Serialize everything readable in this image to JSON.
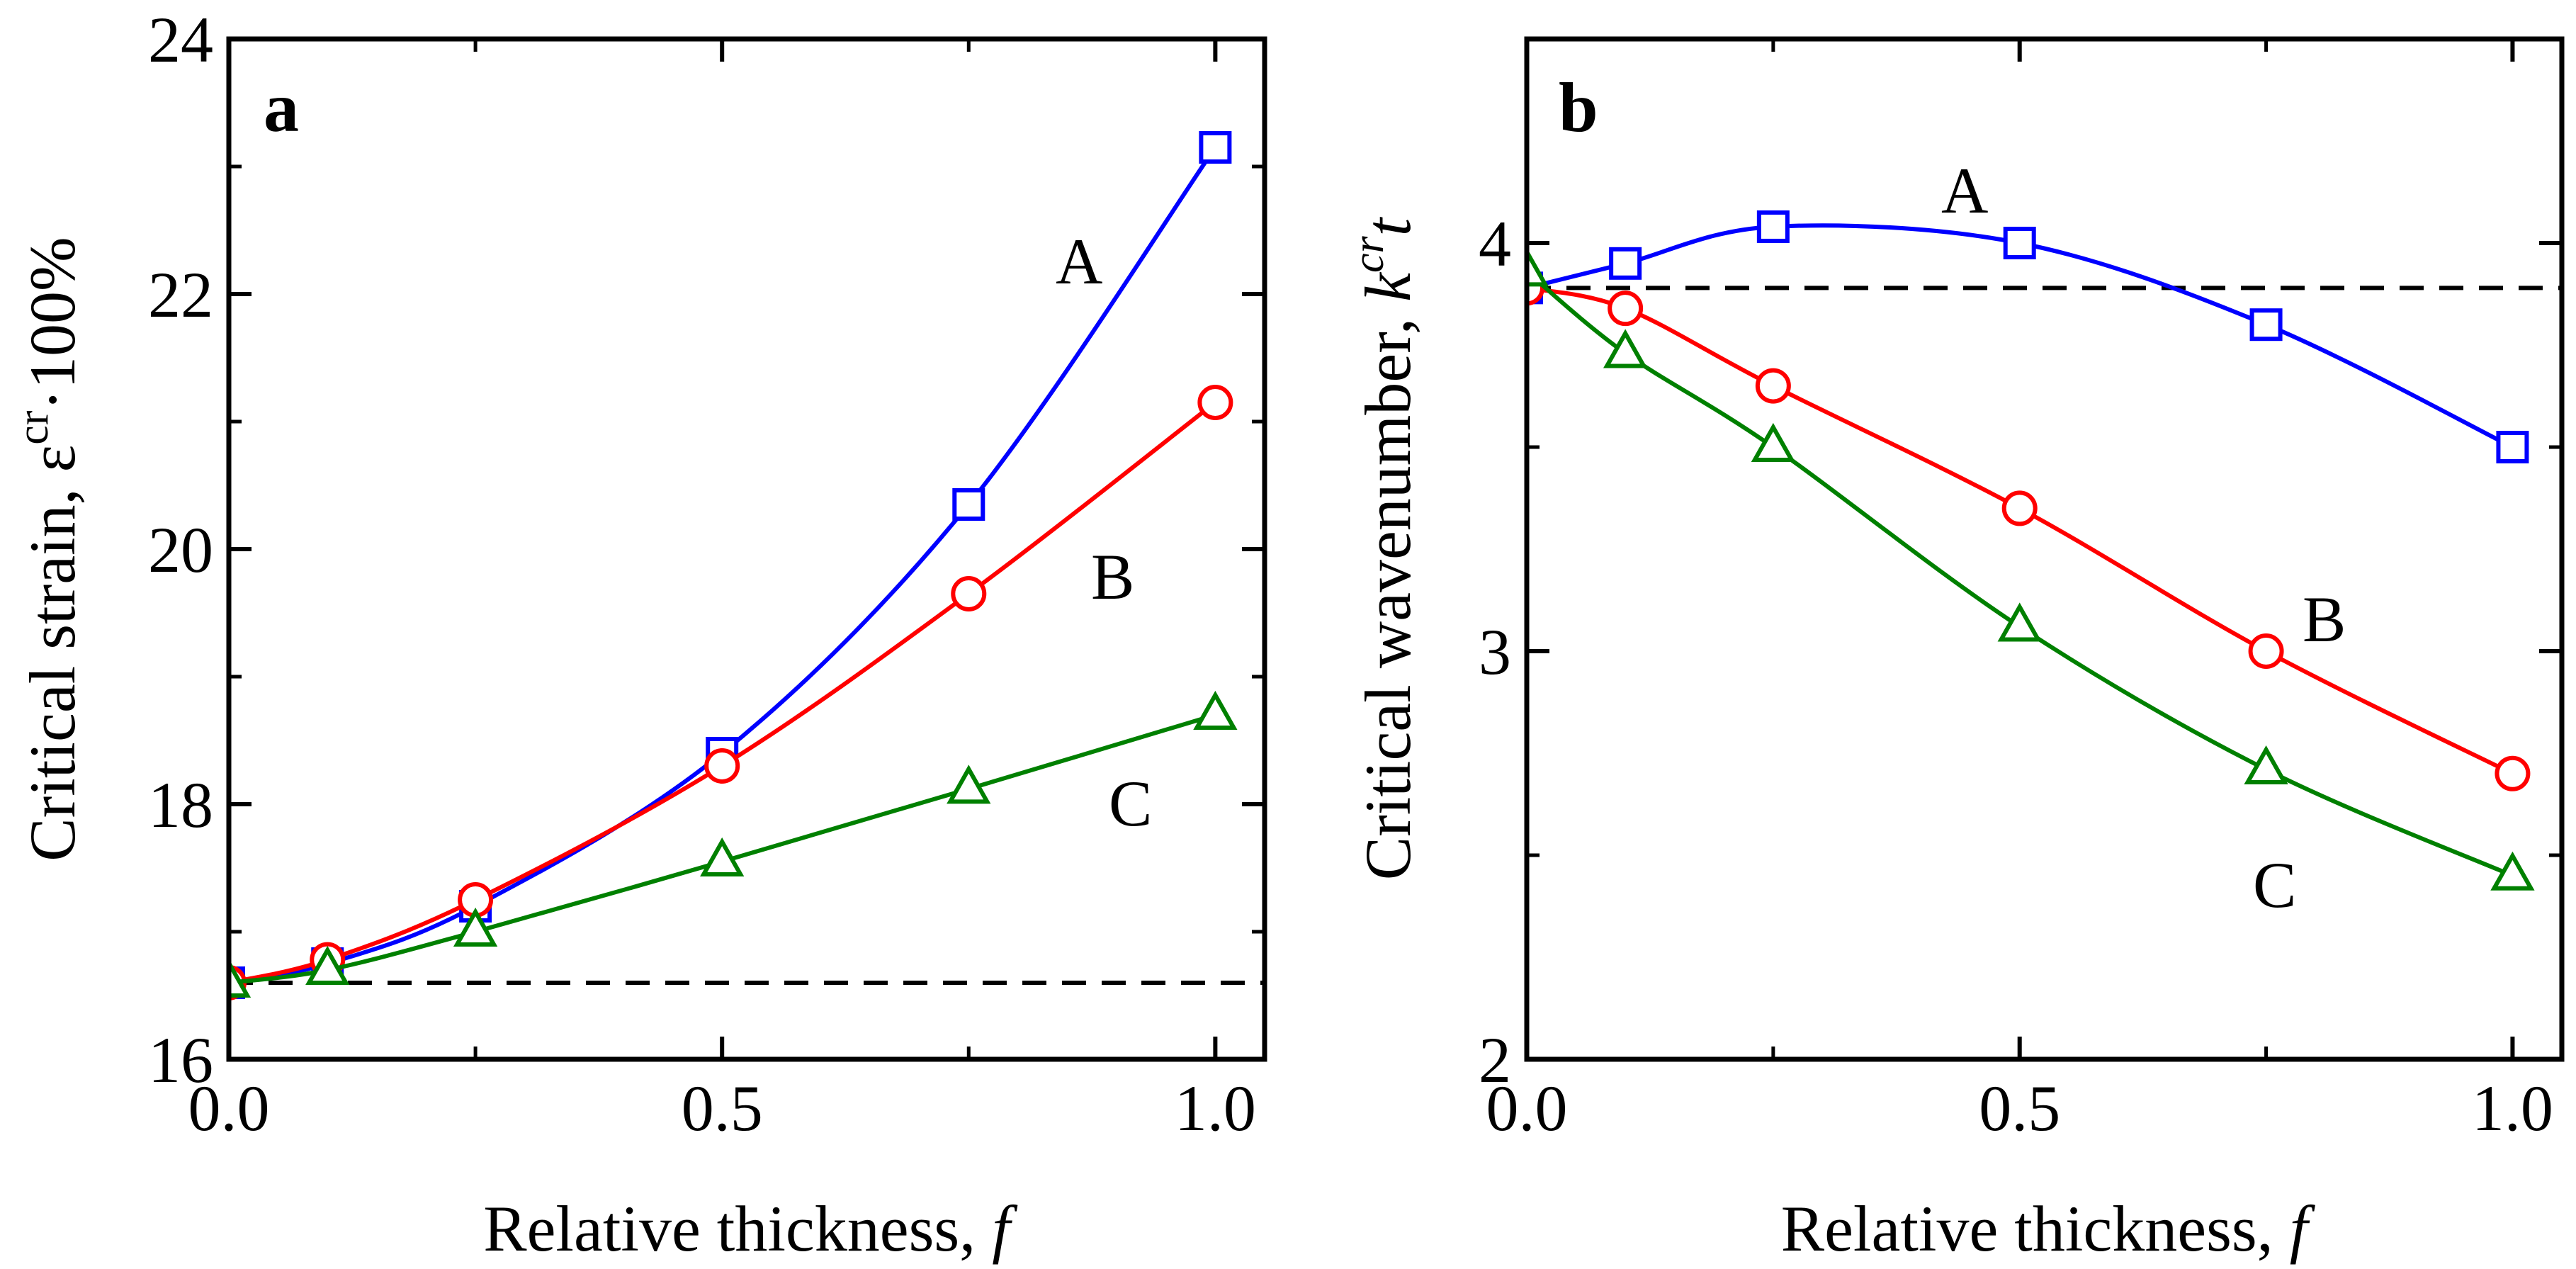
{
  "chart_data": [
    {
      "type": "line",
      "panel_label": "a",
      "xlabel": "Relative thickness, ",
      "xlabel_var": "f",
      "ylabel": "Critical strain, ε",
      "ylabel_sup": "cr",
      "ylabel_suffix": "·100%",
      "xlim": [
        0.0,
        1.05
      ],
      "ylim": [
        16,
        24
      ],
      "x_ticks": [
        0.0,
        0.5,
        1.0
      ],
      "x_tick_labels": [
        "0.0",
        "0.5",
        "1.0"
      ],
      "y_ticks": [
        16,
        18,
        20,
        22,
        24
      ],
      "y_tick_labels": [
        "16",
        "18",
        "20",
        "22",
        "24"
      ],
      "reference_line": {
        "y": 16.6,
        "style": "dashed"
      },
      "series": [
        {
          "name": "A",
          "color": "#0000ff",
          "marker": "square",
          "x": [
            0,
            0.1,
            0.25,
            0.5,
            0.75,
            1.0
          ],
          "y": [
            16.6,
            16.75,
            17.2,
            18.4,
            20.35,
            23.15
          ]
        },
        {
          "name": "B",
          "color": "#ff0000",
          "marker": "circle",
          "x": [
            0,
            0.1,
            0.25,
            0.5,
            0.75,
            1.0
          ],
          "y": [
            16.6,
            16.78,
            17.25,
            18.3,
            19.65,
            21.15
          ]
        },
        {
          "name": "C",
          "color": "#008000",
          "marker": "triangle",
          "x": [
            0,
            0.1,
            0.25,
            0.5,
            0.75,
            1.0
          ],
          "y": [
            16.6,
            16.7,
            17.0,
            17.55,
            18.12,
            18.7
          ]
        }
      ]
    },
    {
      "type": "line",
      "panel_label": "b",
      "xlabel": "Relative thickness, ",
      "xlabel_var": "f",
      "ylabel": "Critical wavenumber, ",
      "ylabel_var": "k",
      "ylabel_sup": "cr",
      "ylabel_var2": "t",
      "xlim": [
        0.0,
        1.05
      ],
      "ylim": [
        2,
        4.5
      ],
      "x_ticks": [
        0.0,
        0.5,
        1.0
      ],
      "x_tick_labels": [
        "0.0",
        "0.5",
        "1.0"
      ],
      "y_ticks": [
        2,
        3,
        4
      ],
      "y_tick_labels": [
        "2",
        "3",
        "4"
      ],
      "reference_line": {
        "y": 3.89,
        "style": "dashed"
      },
      "series": [
        {
          "name": "A",
          "color": "#0000ff",
          "marker": "square",
          "x": [
            0,
            0.1,
            0.25,
            0.5,
            0.75,
            1.0
          ],
          "y": [
            3.89,
            3.95,
            4.04,
            4.0,
            3.8,
            3.5
          ]
        },
        {
          "name": "B",
          "color": "#ff0000",
          "marker": "circle",
          "x": [
            0,
            0.1,
            0.25,
            0.5,
            0.75,
            1.0
          ],
          "y": [
            3.89,
            3.84,
            3.65,
            3.35,
            3.0,
            2.7
          ]
        },
        {
          "name": "C",
          "color": "#008000",
          "marker": "triangle",
          "x": [
            0,
            0.1,
            0.25,
            0.5,
            0.75,
            1.0
          ],
          "y": [
            3.93,
            3.73,
            3.5,
            3.06,
            2.71,
            2.45
          ]
        }
      ]
    }
  ]
}
